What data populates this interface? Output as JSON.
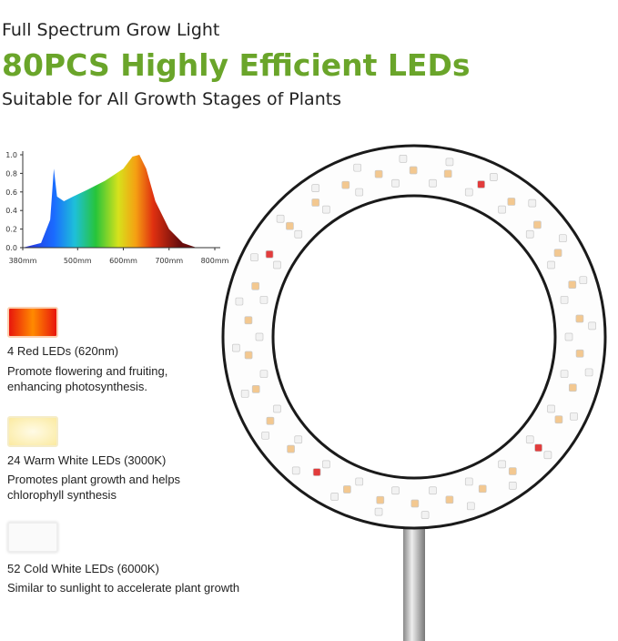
{
  "header": {
    "overline": "Full Spectrum Grow Light",
    "title": "80PCS Highly Efficient LEDs",
    "tagline": "Suitable for All Growth Stages of Plants"
  },
  "spectrum": {
    "x": [
      380,
      420,
      440,
      448,
      455,
      470,
      490,
      520,
      560,
      600,
      620,
      635,
      650,
      670,
      700,
      730,
      760
    ],
    "values": [
      0,
      0.05,
      0.3,
      0.85,
      0.55,
      0.5,
      0.55,
      0.62,
      0.72,
      0.85,
      0.98,
      1.0,
      0.85,
      0.5,
      0.2,
      0.05,
      0
    ],
    "xlim": [
      380,
      800
    ],
    "ylim": [
      0,
      1
    ],
    "xticks": [
      {
        "value": 380,
        "label": "380mm"
      },
      {
        "value": 500,
        "label": "500mm"
      },
      {
        "value": 600,
        "label": "600mm"
      },
      {
        "value": 700,
        "label": "700mm"
      },
      {
        "value": 800,
        "label": "800mm"
      }
    ],
    "yticks": [
      {
        "value": 0,
        "label": "0.0"
      },
      0.2,
      0.4,
      0.6,
      0.8,
      {
        "value": 1,
        "label": "1.0"
      }
    ]
  },
  "leds": [
    {
      "name": "4 Red LEDs (620nm)",
      "description": [
        "Promote flowering and fruiting,",
        "enhancing photosynthesis."
      ]
    },
    {
      "name": "24 Warm White LEDs (3000K)",
      "description": [
        "Promotes plant growth and helps",
        "chlorophyll synthesis"
      ]
    },
    {
      "name": "52 Cold White LEDs (6000K)",
      "description": [
        "Similar to sunlight to accelerate plant growth"
      ]
    }
  ]
}
